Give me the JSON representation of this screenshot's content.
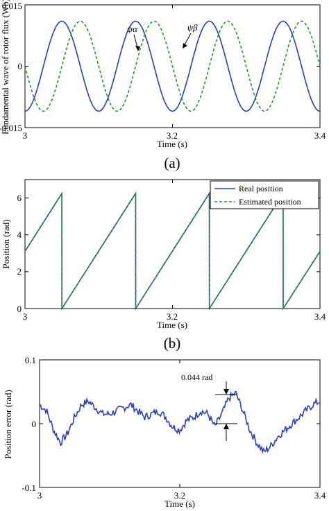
{
  "chart_data": [
    {
      "type": "line",
      "caption": "(a)",
      "xlabel": "Time (s)",
      "ylabel": "Fundamental wave of rotor flux (Wb)",
      "xlim": [
        3,
        3.4
      ],
      "ylim": [
        -0.015,
        0.015
      ],
      "xticks": [
        "3",
        "3.2",
        "3.4"
      ],
      "yticks": [
        "0.015",
        "0",
        "-0.015"
      ],
      "grid": false,
      "series": [
        {
          "name": "ψα",
          "style": "solid",
          "color": "#2a3fb5",
          "x": [
            3.0,
            3.025,
            3.05,
            3.075,
            3.1,
            3.125,
            3.15,
            3.175,
            3.2,
            3.225,
            3.25,
            3.275,
            3.3,
            3.325,
            3.35,
            3.375,
            3.4
          ],
          "y": [
            -0.01,
            -0.002,
            0.01,
            0.002,
            -0.01,
            -0.002,
            0.01,
            0.002,
            -0.01,
            -0.002,
            0.01,
            0.002,
            -0.01,
            -0.002,
            0.01,
            0.002,
            -0.01
          ]
        },
        {
          "name": "ψβ",
          "style": "dashed",
          "color": "#1d9a2a",
          "x": [
            3.0,
            3.025,
            3.05,
            3.075,
            3.1,
            3.125,
            3.15,
            3.175,
            3.2,
            3.225,
            3.25,
            3.275,
            3.3,
            3.325,
            3.35,
            3.375,
            3.4
          ],
          "y": [
            0.002,
            -0.01,
            -0.002,
            0.01,
            0.002,
            -0.01,
            -0.002,
            0.01,
            0.002,
            -0.01,
            -0.002,
            0.01,
            0.002,
            -0.01,
            -0.002,
            0.01,
            0.002
          ]
        }
      ],
      "annotations": [
        "ψα",
        "ψβ"
      ]
    },
    {
      "type": "line",
      "caption": "(b)",
      "xlabel": "Time (s)",
      "ylabel": "Position (rad)",
      "xlim": [
        3,
        3.4
      ],
      "ylim": [
        0,
        7
      ],
      "xticks": [
        "3",
        "3.2",
        "3.4"
      ],
      "yticks": [
        "6",
        "4",
        "2",
        "0"
      ],
      "grid": false,
      "legend": "top-right",
      "series": [
        {
          "name": "Real position",
          "style": "solid",
          "color": "#2a3fb5",
          "x": [
            3.0,
            3.05,
            3.0501,
            3.15,
            3.1501,
            3.25,
            3.2501,
            3.35,
            3.3501,
            3.4
          ],
          "y": [
            3.1,
            6.25,
            0,
            6.25,
            0,
            6.25,
            0,
            6.25,
            0,
            3.1
          ]
        },
        {
          "name": "Estimated position",
          "style": "dashed",
          "color": "#1d9a2a",
          "x": [
            3.0,
            3.05,
            3.0501,
            3.15,
            3.1501,
            3.25,
            3.2501,
            3.35,
            3.3501,
            3.4
          ],
          "y": [
            3.1,
            6.25,
            0,
            6.25,
            0,
            6.25,
            0,
            6.25,
            0,
            3.1
          ]
        }
      ]
    },
    {
      "type": "line",
      "xlabel": "Time (s)",
      "ylabel": "Position error (rad)",
      "xlim": [
        3,
        3.4
      ],
      "ylim": [
        -0.1,
        0.1
      ],
      "xticks": [
        "3",
        "3.2",
        "3.4"
      ],
      "yticks": [
        "0.1",
        "0",
        "-0.1"
      ],
      "grid": false,
      "series": [
        {
          "style": "solid",
          "color": "#2a3fb5",
          "x": [
            3.0,
            3.01,
            3.02,
            3.03,
            3.04,
            3.05,
            3.06,
            3.07,
            3.08,
            3.09,
            3.1,
            3.11,
            3.12,
            3.13,
            3.14,
            3.15,
            3.16,
            3.17,
            3.18,
            3.19,
            3.2,
            3.21,
            3.22,
            3.23,
            3.24,
            3.25,
            3.26,
            3.27,
            3.28,
            3.29,
            3.3,
            3.31,
            3.32,
            3.33,
            3.34,
            3.35,
            3.36,
            3.37,
            3.38,
            3.39,
            3.4
          ],
          "y": [
            0.03,
            0.02,
            -0.01,
            -0.03,
            -0.015,
            0.01,
            0.03,
            0.035,
            0.025,
            0.015,
            0.015,
            0.02,
            0.025,
            0.03,
            0.02,
            0.01,
            0.015,
            0.02,
            0.01,
            -0.005,
            -0.01,
            0.005,
            0.01,
            0.02,
            0.015,
            -0.005,
            0.015,
            0.04,
            0.048,
            0.02,
            -0.01,
            -0.03,
            -0.045,
            -0.035,
            -0.02,
            -0.01,
            0.0,
            0.01,
            0.02,
            0.03,
            0.035
          ]
        }
      ],
      "annotations": [
        "0.044 rad"
      ]
    }
  ]
}
